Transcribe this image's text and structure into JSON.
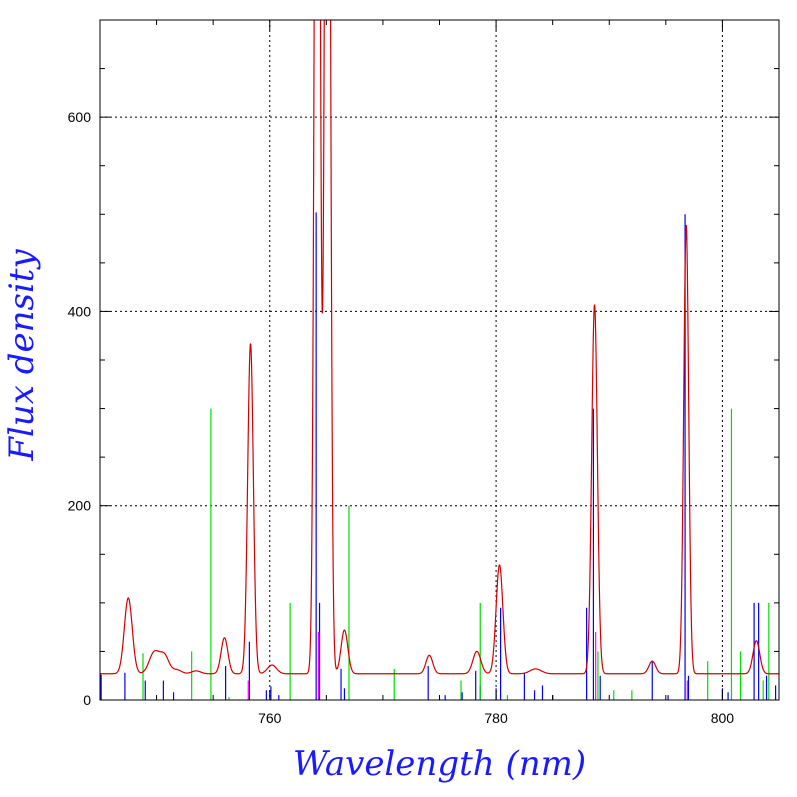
{
  "chart_data": {
    "type": "line",
    "title": "",
    "xlabel": "Wavelength (nm)",
    "ylabel": "Flux density",
    "xlim": [
      745,
      805
    ],
    "ylim": [
      0,
      700
    ],
    "grid": true,
    "x_ticks": [
      760,
      780,
      800
    ],
    "y_ticks": [
      0,
      200,
      400,
      600
    ],
    "x_tick_labels": [
      "760",
      "780",
      "800"
    ],
    "y_tick_labels": [
      "0",
      "200",
      "400",
      "600"
    ],
    "colors": {
      "axis_title": "#1a1aff",
      "spectrum": "#d40000",
      "line_set_1": "#0000ff",
      "line_set_2": "#00dd00",
      "line_set_3": "#ff00ff"
    },
    "baseline": 27,
    "peaks": [
      {
        "center": 747.5,
        "height": 78,
        "width": 0.35
      },
      {
        "center": 749.8,
        "height": 22,
        "width": 0.45
      },
      {
        "center": 750.7,
        "height": 18,
        "width": 0.4
      },
      {
        "center": 751.8,
        "height": 4,
        "width": 0.4
      },
      {
        "center": 753.5,
        "height": 3,
        "width": 0.4
      },
      {
        "center": 756.0,
        "height": 37,
        "width": 0.3
      },
      {
        "center": 758.3,
        "height": 340,
        "width": 0.25
      },
      {
        "center": 760.2,
        "height": 9,
        "width": 0.4
      },
      {
        "center": 764.2,
        "height": 1500,
        "width": 0.22
      },
      {
        "center": 765.1,
        "height": 1500,
        "width": 0.22
      },
      {
        "center": 766.6,
        "height": 45,
        "width": 0.3
      },
      {
        "center": 774.1,
        "height": 19,
        "width": 0.3
      },
      {
        "center": 778.3,
        "height": 23,
        "width": 0.35
      },
      {
        "center": 780.3,
        "height": 112,
        "width": 0.3
      },
      {
        "center": 783.5,
        "height": 5,
        "width": 0.5
      },
      {
        "center": 788.7,
        "height": 380,
        "width": 0.25
      },
      {
        "center": 793.8,
        "height": 13,
        "width": 0.3
      },
      {
        "center": 796.8,
        "height": 462,
        "width": 0.22
      },
      {
        "center": 803.0,
        "height": 34,
        "width": 0.3
      }
    ],
    "line_sets": [
      {
        "color": "#0000ff",
        "lines": [
          {
            "x": 745.1,
            "y": 26
          },
          {
            "x": 747.2,
            "y": 28
          },
          {
            "x": 749.0,
            "y": 20
          },
          {
            "x": 750.6,
            "y": 20
          },
          {
            "x": 751.5,
            "y": 8
          },
          {
            "x": 756.1,
            "y": 35
          },
          {
            "x": 758.2,
            "y": 60
          },
          {
            "x": 759.7,
            "y": 10
          },
          {
            "x": 760.1,
            "y": 14
          },
          {
            "x": 760.8,
            "y": 5
          },
          {
            "x": 764.1,
            "y": 502
          },
          {
            "x": 764.4,
            "y": 100
          },
          {
            "x": 766.3,
            "y": 32
          },
          {
            "x": 766.6,
            "y": 12
          },
          {
            "x": 774.0,
            "y": 35
          },
          {
            "x": 775.5,
            "y": 5
          },
          {
            "x": 777.0,
            "y": 8
          },
          {
            "x": 778.2,
            "y": 30
          },
          {
            "x": 778.6,
            "y": 15
          },
          {
            "x": 780.4,
            "y": 95
          },
          {
            "x": 780.0,
            "y": 12
          },
          {
            "x": 782.5,
            "y": 28
          },
          {
            "x": 783.4,
            "y": 10
          },
          {
            "x": 784.1,
            "y": 15
          },
          {
            "x": 785.0,
            "y": 5
          },
          {
            "x": 788.0,
            "y": 95
          },
          {
            "x": 788.6,
            "y": 300
          },
          {
            "x": 789.2,
            "y": 25
          },
          {
            "x": 793.8,
            "y": 40
          },
          {
            "x": 795.2,
            "y": 5
          },
          {
            "x": 796.7,
            "y": 500
          },
          {
            "x": 797.0,
            "y": 25
          },
          {
            "x": 800.0,
            "y": 12
          },
          {
            "x": 800.5,
            "y": 8
          },
          {
            "x": 802.8,
            "y": 100
          },
          {
            "x": 803.2,
            "y": 100
          },
          {
            "x": 803.9,
            "y": 25
          },
          {
            "x": 804.7,
            "y": 15
          }
        ]
      },
      {
        "color": "#00dd00",
        "lines": [
          {
            "x": 748.8,
            "y": 48
          },
          {
            "x": 753.1,
            "y": 50
          },
          {
            "x": 754.8,
            "y": 300
          },
          {
            "x": 756.4,
            "y": 3
          },
          {
            "x": 761.8,
            "y": 100
          },
          {
            "x": 767.0,
            "y": 200
          },
          {
            "x": 771.0,
            "y": 32
          },
          {
            "x": 776.9,
            "y": 20
          },
          {
            "x": 778.6,
            "y": 100
          },
          {
            "x": 781.0,
            "y": 5
          },
          {
            "x": 789.0,
            "y": 50
          },
          {
            "x": 790.4,
            "y": 10
          },
          {
            "x": 792.0,
            "y": 10
          },
          {
            "x": 798.7,
            "y": 40
          },
          {
            "x": 800.8,
            "y": 300
          },
          {
            "x": 801.6,
            "y": 50
          },
          {
            "x": 803.6,
            "y": 20
          },
          {
            "x": 804.1,
            "y": 100
          }
        ]
      },
      {
        "color": "#ff00ff",
        "lines": [
          {
            "x": 758.1,
            "y": 20
          },
          {
            "x": 764.3,
            "y": 70
          },
          {
            "x": 788.8,
            "y": 70
          },
          {
            "x": 796.9,
            "y": 20
          }
        ]
      }
    ]
  }
}
